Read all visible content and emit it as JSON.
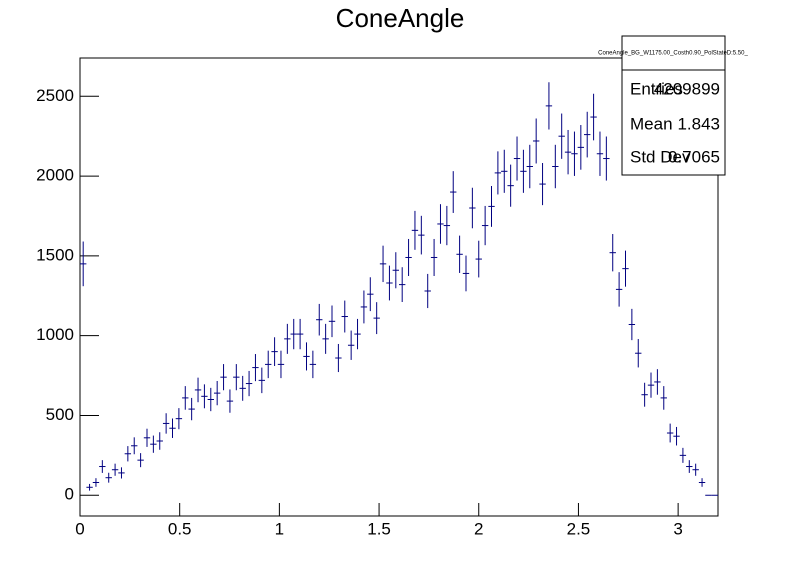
{
  "chart_data": {
    "type": "histogram",
    "title": "ConeAngle",
    "color": "#000080",
    "bins": [
      0,
      0.032,
      0.064,
      0.096,
      0.128,
      0.16,
      0.192,
      0.224,
      0.256,
      0.288,
      0.32,
      0.352,
      0.384,
      0.416,
      0.448,
      0.48,
      0.512,
      0.544,
      0.576,
      0.608,
      0.64,
      0.672,
      0.704,
      0.736,
      0.768,
      0.8,
      0.832,
      0.864,
      0.896,
      0.928,
      0.96,
      0.992,
      1.024,
      1.056,
      1.088,
      1.12,
      1.152,
      1.184,
      1.216,
      1.248,
      1.28,
      1.312,
      1.344,
      1.376,
      1.408,
      1.44,
      1.472,
      1.504,
      1.536,
      1.568,
      1.6,
      1.632,
      1.664,
      1.696,
      1.728,
      1.76,
      1.792,
      1.824,
      1.856,
      1.888,
      1.92,
      1.952,
      1.984,
      2.016,
      2.048,
      2.08,
      2.112,
      2.144,
      2.176,
      2.208,
      2.24,
      2.272,
      2.304,
      2.336,
      2.368,
      2.4,
      2.432,
      2.464,
      2.496,
      2.528,
      2.56,
      2.592,
      2.624,
      2.656,
      2.688,
      2.72,
      2.752,
      2.784,
      2.816,
      2.848,
      2.88,
      2.912,
      2.944,
      2.976,
      3.008,
      3.04,
      3.072,
      3.104,
      3.136,
      3.168,
      3.2
    ],
    "values": [
      1450,
      50,
      80,
      180,
      110,
      160,
      140,
      260,
      310,
      220,
      360,
      320,
      340,
      450,
      420,
      480,
      610,
      540,
      660,
      620,
      600,
      640,
      740,
      590,
      740,
      670,
      700,
      800,
      720,
      820,
      900,
      820,
      980,
      1010,
      1010,
      870,
      820,
      1100,
      980,
      1090,
      860,
      1120,
      940,
      1010,
      1180,
      1260,
      1110,
      1450,
      1330,
      1410,
      1320,
      1490,
      1660,
      1630,
      1280,
      1490,
      1700,
      1690,
      1900,
      1510,
      1390,
      1800,
      1480,
      1690,
      1810,
      2020,
      2030,
      1940,
      2110,
      2030,
      2060,
      2220,
      1950,
      2440,
      2060,
      2250,
      2150,
      2140,
      2180,
      2260,
      2370,
      2140,
      2110,
      1520,
      1290,
      1420,
      1070,
      890,
      630,
      690,
      710,
      610,
      390,
      370,
      250,
      180,
      160,
      80,
      0,
      0
    ],
    "errors": [
      140,
      21,
      27,
      40,
      31,
      38,
      35,
      48,
      53,
      44,
      57,
      54,
      55,
      64,
      61,
      66,
      74,
      70,
      77,
      75,
      73,
      76,
      82,
      73,
      82,
      78,
      79,
      85,
      80,
      86,
      90,
      86,
      94,
      95,
      95,
      88,
      86,
      99,
      94,
      99,
      88,
      100,
      92,
      95,
      103,
      106,
      100,
      114,
      109,
      113,
      109,
      116,
      122,
      121,
      107,
      116,
      124,
      123,
      131,
      117,
      112,
      127,
      115,
      123,
      128,
      135,
      135,
      132,
      138,
      135,
      136,
      141,
      132,
      148,
      136,
      142,
      139,
      139,
      140,
      143,
      146,
      139,
      138,
      117,
      108,
      113,
      98,
      89,
      75,
      79,
      80,
      74,
      59,
      58,
      47,
      40,
      38,
      27,
      0,
      0
    ],
    "xlim": [
      0,
      3.2
    ],
    "ylim": [
      -130,
      2740
    ],
    "xticks": [
      0,
      0.5,
      1,
      1.5,
      2,
      2.5,
      3
    ],
    "yticks": [
      0,
      500,
      1000,
      1500,
      2000,
      2500
    ],
    "stats_box": {
      "title": "ConeAngle_BG_W1175.00_Costh0.90_PolStateD:5.50_",
      "rows": [
        [
          "Entries",
          4209899
        ],
        [
          "Mean",
          1.843
        ],
        [
          "Std Dev",
          0.7065
        ]
      ]
    }
  }
}
